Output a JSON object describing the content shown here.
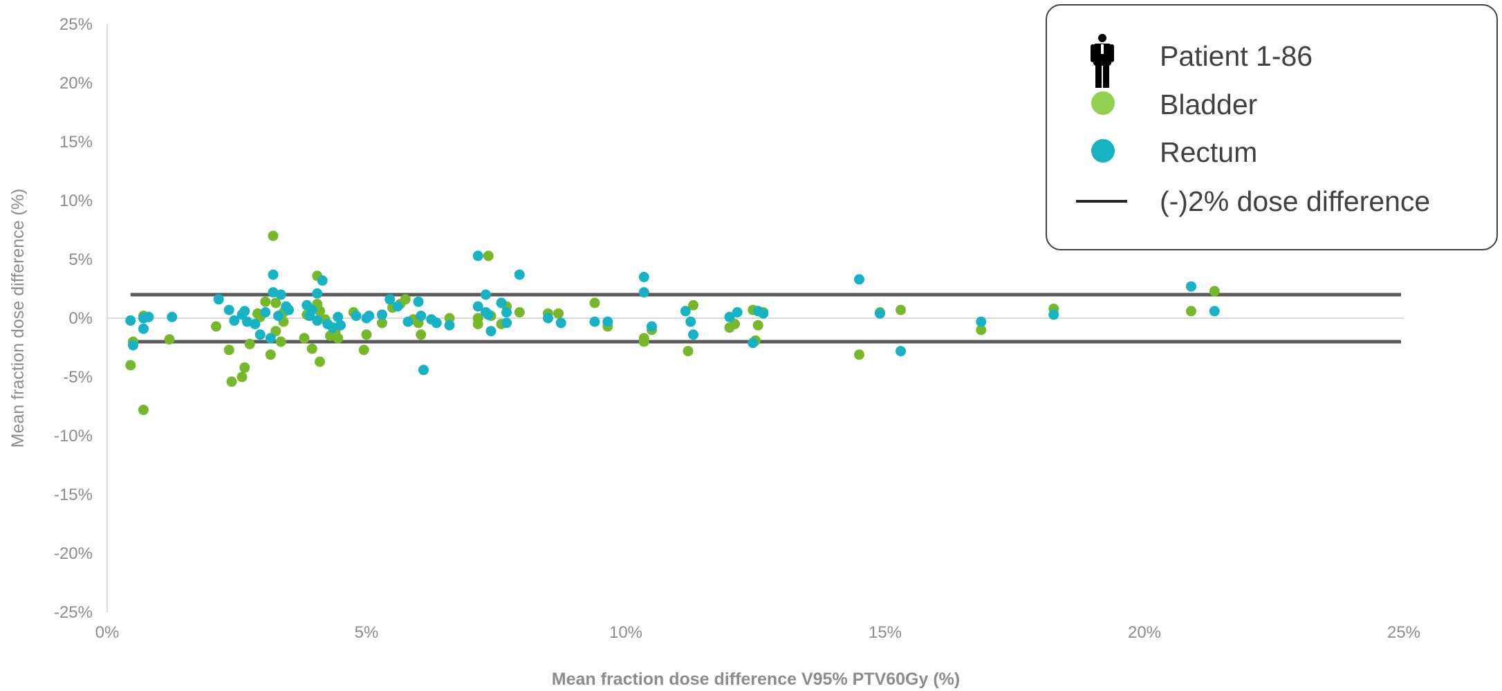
{
  "chart_data": {
    "type": "scatter",
    "xlabel": "Mean fraction dose difference V95% PTV60Gy (%)",
    "ylabel": "Mean fraction dose difference (%)",
    "xlim": [
      0,
      25
    ],
    "ylim": [
      -25,
      25
    ],
    "x_ticks": [
      "0%",
      "5%",
      "10%",
      "15%",
      "20%",
      "25%"
    ],
    "y_ticks": [
      "25%",
      "20%",
      "15%",
      "10%",
      "5%",
      "0%",
      "-5%",
      "-10%",
      "-15%",
      "-20%",
      "-25%"
    ],
    "grid": false,
    "legend_position": "top-right",
    "legend": [
      {
        "label": "Patient 1-86",
        "symbol": "person-icon"
      },
      {
        "label": "Bladder",
        "symbol": "dot",
        "color": "#92d050"
      },
      {
        "label": "Rectum",
        "symbol": "dot",
        "color": "#17b3c5"
      },
      {
        "label": "(-)2% dose difference",
        "symbol": "line",
        "color": "#262626"
      }
    ],
    "reference_lines": [
      {
        "y": 2,
        "x_range": [
          0.45,
          25
        ],
        "color": "#595959"
      },
      {
        "y": -2,
        "x_range": [
          0.45,
          25
        ],
        "color": "#595959"
      }
    ],
    "series": [
      {
        "name": "Bladder",
        "color": "#76b82a",
        "points": [
          [
            0.45,
            -4.0
          ],
          [
            0.5,
            -2.0
          ],
          [
            0.7,
            0.2
          ],
          [
            0.7,
            -7.8
          ],
          [
            1.2,
            -1.8
          ],
          [
            2.1,
            -0.7
          ],
          [
            2.35,
            -2.7
          ],
          [
            2.4,
            -5.4
          ],
          [
            2.6,
            -5.0
          ],
          [
            2.65,
            -4.2
          ],
          [
            2.75,
            -2.2
          ],
          [
            2.9,
            0.4
          ],
          [
            2.95,
            0.1
          ],
          [
            3.05,
            1.4
          ],
          [
            3.15,
            -3.1
          ],
          [
            3.2,
            7.0
          ],
          [
            3.25,
            1.3
          ],
          [
            3.25,
            -1.1
          ],
          [
            3.35,
            -2.0
          ],
          [
            3.4,
            0.5
          ],
          [
            3.4,
            -0.3
          ],
          [
            3.8,
            -1.7
          ],
          [
            3.85,
            0.3
          ],
          [
            3.95,
            -2.6
          ],
          [
            4.05,
            3.6
          ],
          [
            4.05,
            1.2
          ],
          [
            4.1,
            0.6
          ],
          [
            4.1,
            -3.7
          ],
          [
            4.2,
            -0.1
          ],
          [
            4.3,
            -1.5
          ],
          [
            4.4,
            -1.2
          ],
          [
            4.45,
            -1.7
          ],
          [
            4.75,
            0.5
          ],
          [
            4.95,
            -2.7
          ],
          [
            5.0,
            -1.4
          ],
          [
            5.3,
            -0.4
          ],
          [
            5.5,
            0.9
          ],
          [
            5.65,
            1.2
          ],
          [
            5.75,
            1.6
          ],
          [
            5.9,
            -0.1
          ],
          [
            6.0,
            -0.4
          ],
          [
            6.05,
            -1.4
          ],
          [
            6.6,
            0.0
          ],
          [
            7.15,
            0.0
          ],
          [
            7.15,
            -0.5
          ],
          [
            7.35,
            5.3
          ],
          [
            7.4,
            0.2
          ],
          [
            7.6,
            -0.5
          ],
          [
            7.7,
            1.0
          ],
          [
            7.95,
            0.5
          ],
          [
            8.5,
            0.4
          ],
          [
            8.7,
            0.4
          ],
          [
            9.4,
            1.3
          ],
          [
            9.65,
            -0.7
          ],
          [
            10.35,
            -1.7
          ],
          [
            10.35,
            -2.0
          ],
          [
            10.5,
            -1.0
          ],
          [
            11.2,
            -2.8
          ],
          [
            11.3,
            1.1
          ],
          [
            12.0,
            -0.8
          ],
          [
            12.1,
            -0.5
          ],
          [
            12.45,
            0.7
          ],
          [
            12.5,
            -1.9
          ],
          [
            12.55,
            -0.6
          ],
          [
            12.65,
            0.5
          ],
          [
            14.5,
            -3.1
          ],
          [
            14.9,
            0.5
          ],
          [
            15.3,
            0.7
          ],
          [
            16.85,
            -1.0
          ],
          [
            18.25,
            0.8
          ],
          [
            20.9,
            0.6
          ],
          [
            21.35,
            2.3
          ]
        ]
      },
      {
        "name": "Rectum",
        "color": "#17b3c5",
        "points": [
          [
            0.45,
            -0.2
          ],
          [
            0.5,
            -2.3
          ],
          [
            0.7,
            -0.9
          ],
          [
            0.7,
            0.0
          ],
          [
            0.8,
            0.1
          ],
          [
            1.25,
            0.1
          ],
          [
            2.15,
            1.6
          ],
          [
            2.35,
            0.7
          ],
          [
            2.45,
            -0.2
          ],
          [
            2.6,
            0.3
          ],
          [
            2.65,
            0.6
          ],
          [
            2.7,
            -0.3
          ],
          [
            2.85,
            -0.5
          ],
          [
            2.95,
            -1.4
          ],
          [
            3.05,
            0.5
          ],
          [
            3.15,
            -1.7
          ],
          [
            3.2,
            3.7
          ],
          [
            3.2,
            2.2
          ],
          [
            3.3,
            0.2
          ],
          [
            3.35,
            2.0
          ],
          [
            3.45,
            1.0
          ],
          [
            3.5,
            0.7
          ],
          [
            3.85,
            1.1
          ],
          [
            3.9,
            0.2
          ],
          [
            3.95,
            0.7
          ],
          [
            4.05,
            2.1
          ],
          [
            4.05,
            -0.2
          ],
          [
            4.15,
            3.2
          ],
          [
            4.25,
            -0.5
          ],
          [
            4.35,
            -0.8
          ],
          [
            4.45,
            0.1
          ],
          [
            4.5,
            -0.6
          ],
          [
            4.8,
            0.2
          ],
          [
            5.0,
            0.0
          ],
          [
            5.05,
            0.2
          ],
          [
            5.3,
            0.3
          ],
          [
            5.45,
            1.6
          ],
          [
            5.6,
            1.0
          ],
          [
            5.8,
            -0.3
          ],
          [
            6.0,
            1.4
          ],
          [
            6.05,
            0.2
          ],
          [
            6.1,
            -4.4
          ],
          [
            6.25,
            -0.1
          ],
          [
            6.35,
            -0.4
          ],
          [
            6.6,
            -0.6
          ],
          [
            7.15,
            5.3
          ],
          [
            7.15,
            1.0
          ],
          [
            7.3,
            0.5
          ],
          [
            7.3,
            2.0
          ],
          [
            7.35,
            0.3
          ],
          [
            7.4,
            -1.1
          ],
          [
            7.6,
            1.3
          ],
          [
            7.7,
            0.5
          ],
          [
            7.7,
            -0.4
          ],
          [
            7.95,
            3.7
          ],
          [
            8.5,
            0.0
          ],
          [
            8.75,
            -0.4
          ],
          [
            9.4,
            -0.3
          ],
          [
            9.65,
            -0.3
          ],
          [
            10.35,
            3.5
          ],
          [
            10.35,
            2.2
          ],
          [
            10.5,
            -0.7
          ],
          [
            11.15,
            0.6
          ],
          [
            11.25,
            -0.3
          ],
          [
            11.3,
            -1.4
          ],
          [
            12.0,
            0.1
          ],
          [
            12.15,
            0.5
          ],
          [
            12.45,
            -2.1
          ],
          [
            12.55,
            0.6
          ],
          [
            12.65,
            0.4
          ],
          [
            14.5,
            3.3
          ],
          [
            14.9,
            0.4
          ],
          [
            15.3,
            -2.8
          ],
          [
            16.85,
            -0.3
          ],
          [
            18.25,
            0.3
          ],
          [
            20.9,
            2.7
          ],
          [
            21.35,
            0.6
          ]
        ]
      }
    ]
  }
}
